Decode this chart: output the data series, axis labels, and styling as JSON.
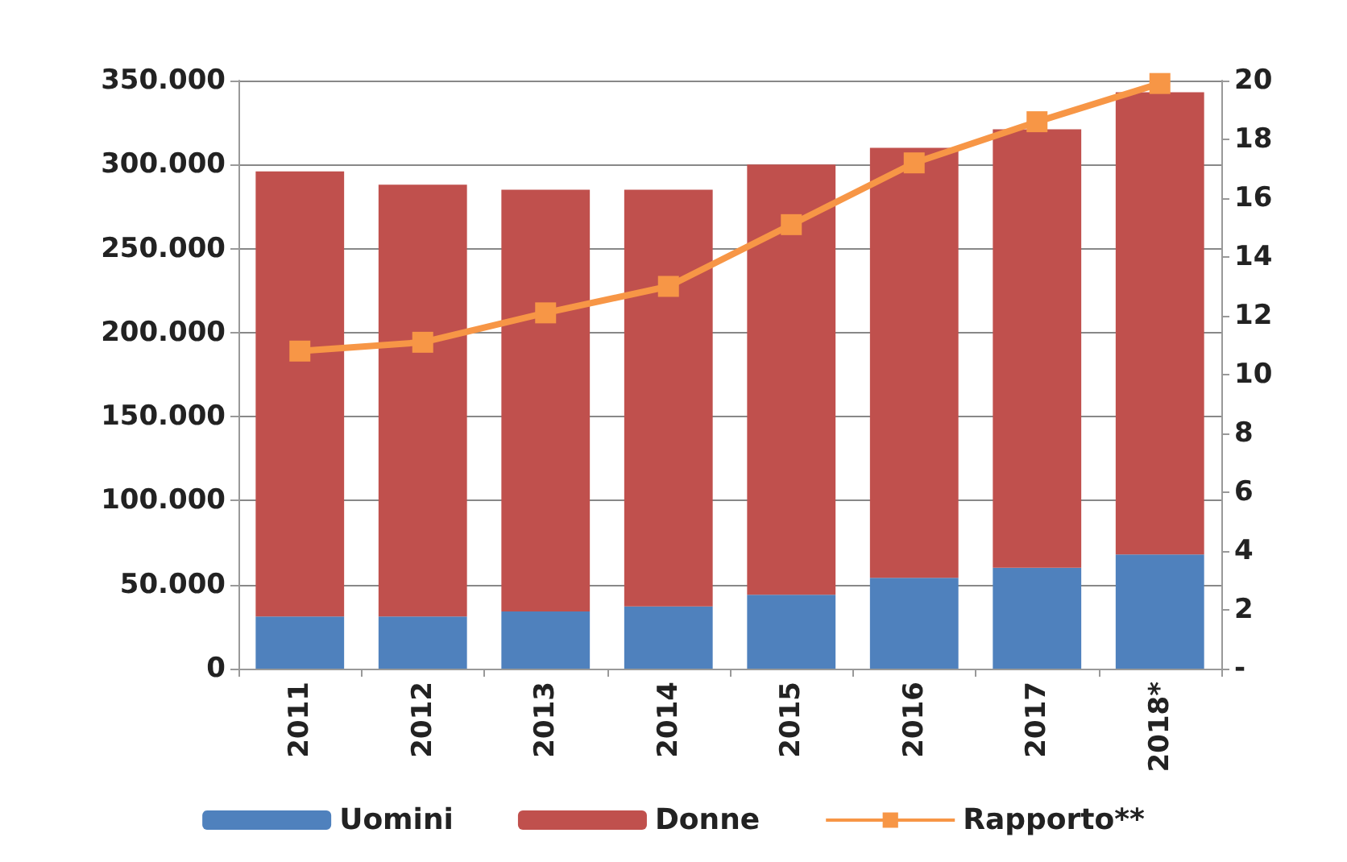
{
  "chart_data": {
    "type": "bar",
    "stacked": true,
    "categories": [
      "2011",
      "2012",
      "2013",
      "2014",
      "2015",
      "2016",
      "2017",
      "2018*"
    ],
    "series": [
      {
        "name": "Uomini",
        "color": "#4f81bd",
        "values": [
          31000,
          31000,
          34000,
          37000,
          44000,
          54000,
          60000,
          68000
        ]
      },
      {
        "name": "Donne",
        "color": "#c0504d",
        "values": [
          265000,
          257000,
          251000,
          248000,
          256000,
          256000,
          261000,
          275000
        ]
      },
      {
        "name": "Rapporto**",
        "type": "line",
        "axis": "y2",
        "color": "#f79646",
        "marker": "square",
        "values": [
          10.8,
          11.1,
          12.1,
          13.0,
          15.1,
          17.2,
          18.6,
          19.9
        ]
      }
    ],
    "ylim": [
      0,
      350000
    ],
    "yticks": [
      0,
      {
        "value": 50000,
        "label": "50.000"
      },
      {
        "value": 100000,
        "label": "100.000"
      },
      {
        "value": 150000,
        "label": "150.000"
      },
      {
        "value": 200000,
        "label": "200.000"
      },
      {
        "value": 250000,
        "label": "250.000"
      },
      {
        "value": 300000,
        "label": "300.000"
      },
      {
        "value": 350000,
        "label": "350.000"
      }
    ],
    "y2lim": [
      0,
      20
    ],
    "y2ticks": [
      {
        "value": 0,
        "label": "-"
      },
      2,
      4,
      6,
      8,
      10,
      12,
      14,
      16,
      18,
      20
    ],
    "grid": "y",
    "legend": "bottom"
  }
}
